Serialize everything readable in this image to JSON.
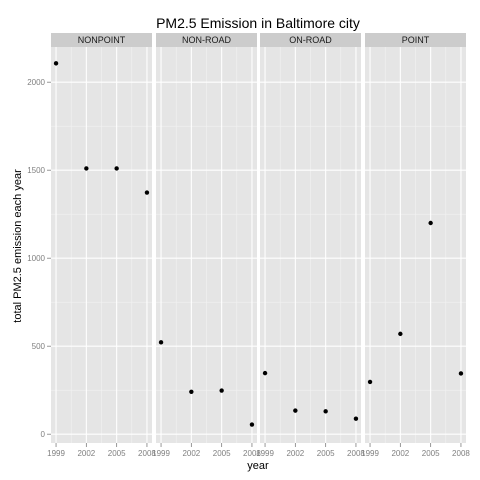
{
  "chart_data": {
    "type": "scatter",
    "title": "PM2.5 Emission in Baltimore city",
    "xlabel": "year",
    "ylabel": "total PM2.5 emission each year",
    "x_ticks": [
      1999,
      2002,
      2005,
      2008
    ],
    "y_ticks": [
      0,
      500,
      1000,
      1500,
      2000
    ],
    "ylim": [
      -50,
      2200
    ],
    "xlim": [
      1998.5,
      2008.5
    ],
    "grid": true,
    "legend": "none",
    "panel_background": "#e5e5e5",
    "strip_background": "#cccccc",
    "point_color": "#000000",
    "panels": [
      {
        "label": "NONPOINT",
        "points": [
          {
            "x": 1999,
            "y": 2107
          },
          {
            "x": 2002,
            "y": 1510
          },
          {
            "x": 2005,
            "y": 1510
          },
          {
            "x": 2008,
            "y": 1373
          }
        ]
      },
      {
        "label": "NON-ROAD",
        "points": [
          {
            "x": 1999,
            "y": 522
          },
          {
            "x": 2002,
            "y": 241
          },
          {
            "x": 2005,
            "y": 248
          },
          {
            "x": 2008,
            "y": 55
          }
        ]
      },
      {
        "label": "ON-ROAD",
        "points": [
          {
            "x": 1999,
            "y": 347
          },
          {
            "x": 2002,
            "y": 134
          },
          {
            "x": 2005,
            "y": 130
          },
          {
            "x": 2008,
            "y": 88
          }
        ]
      },
      {
        "label": "POINT",
        "points": [
          {
            "x": 1999,
            "y": 297
          },
          {
            "x": 2002,
            "y": 570
          },
          {
            "x": 2005,
            "y": 1200
          },
          {
            "x": 2008,
            "y": 345
          }
        ]
      }
    ]
  }
}
